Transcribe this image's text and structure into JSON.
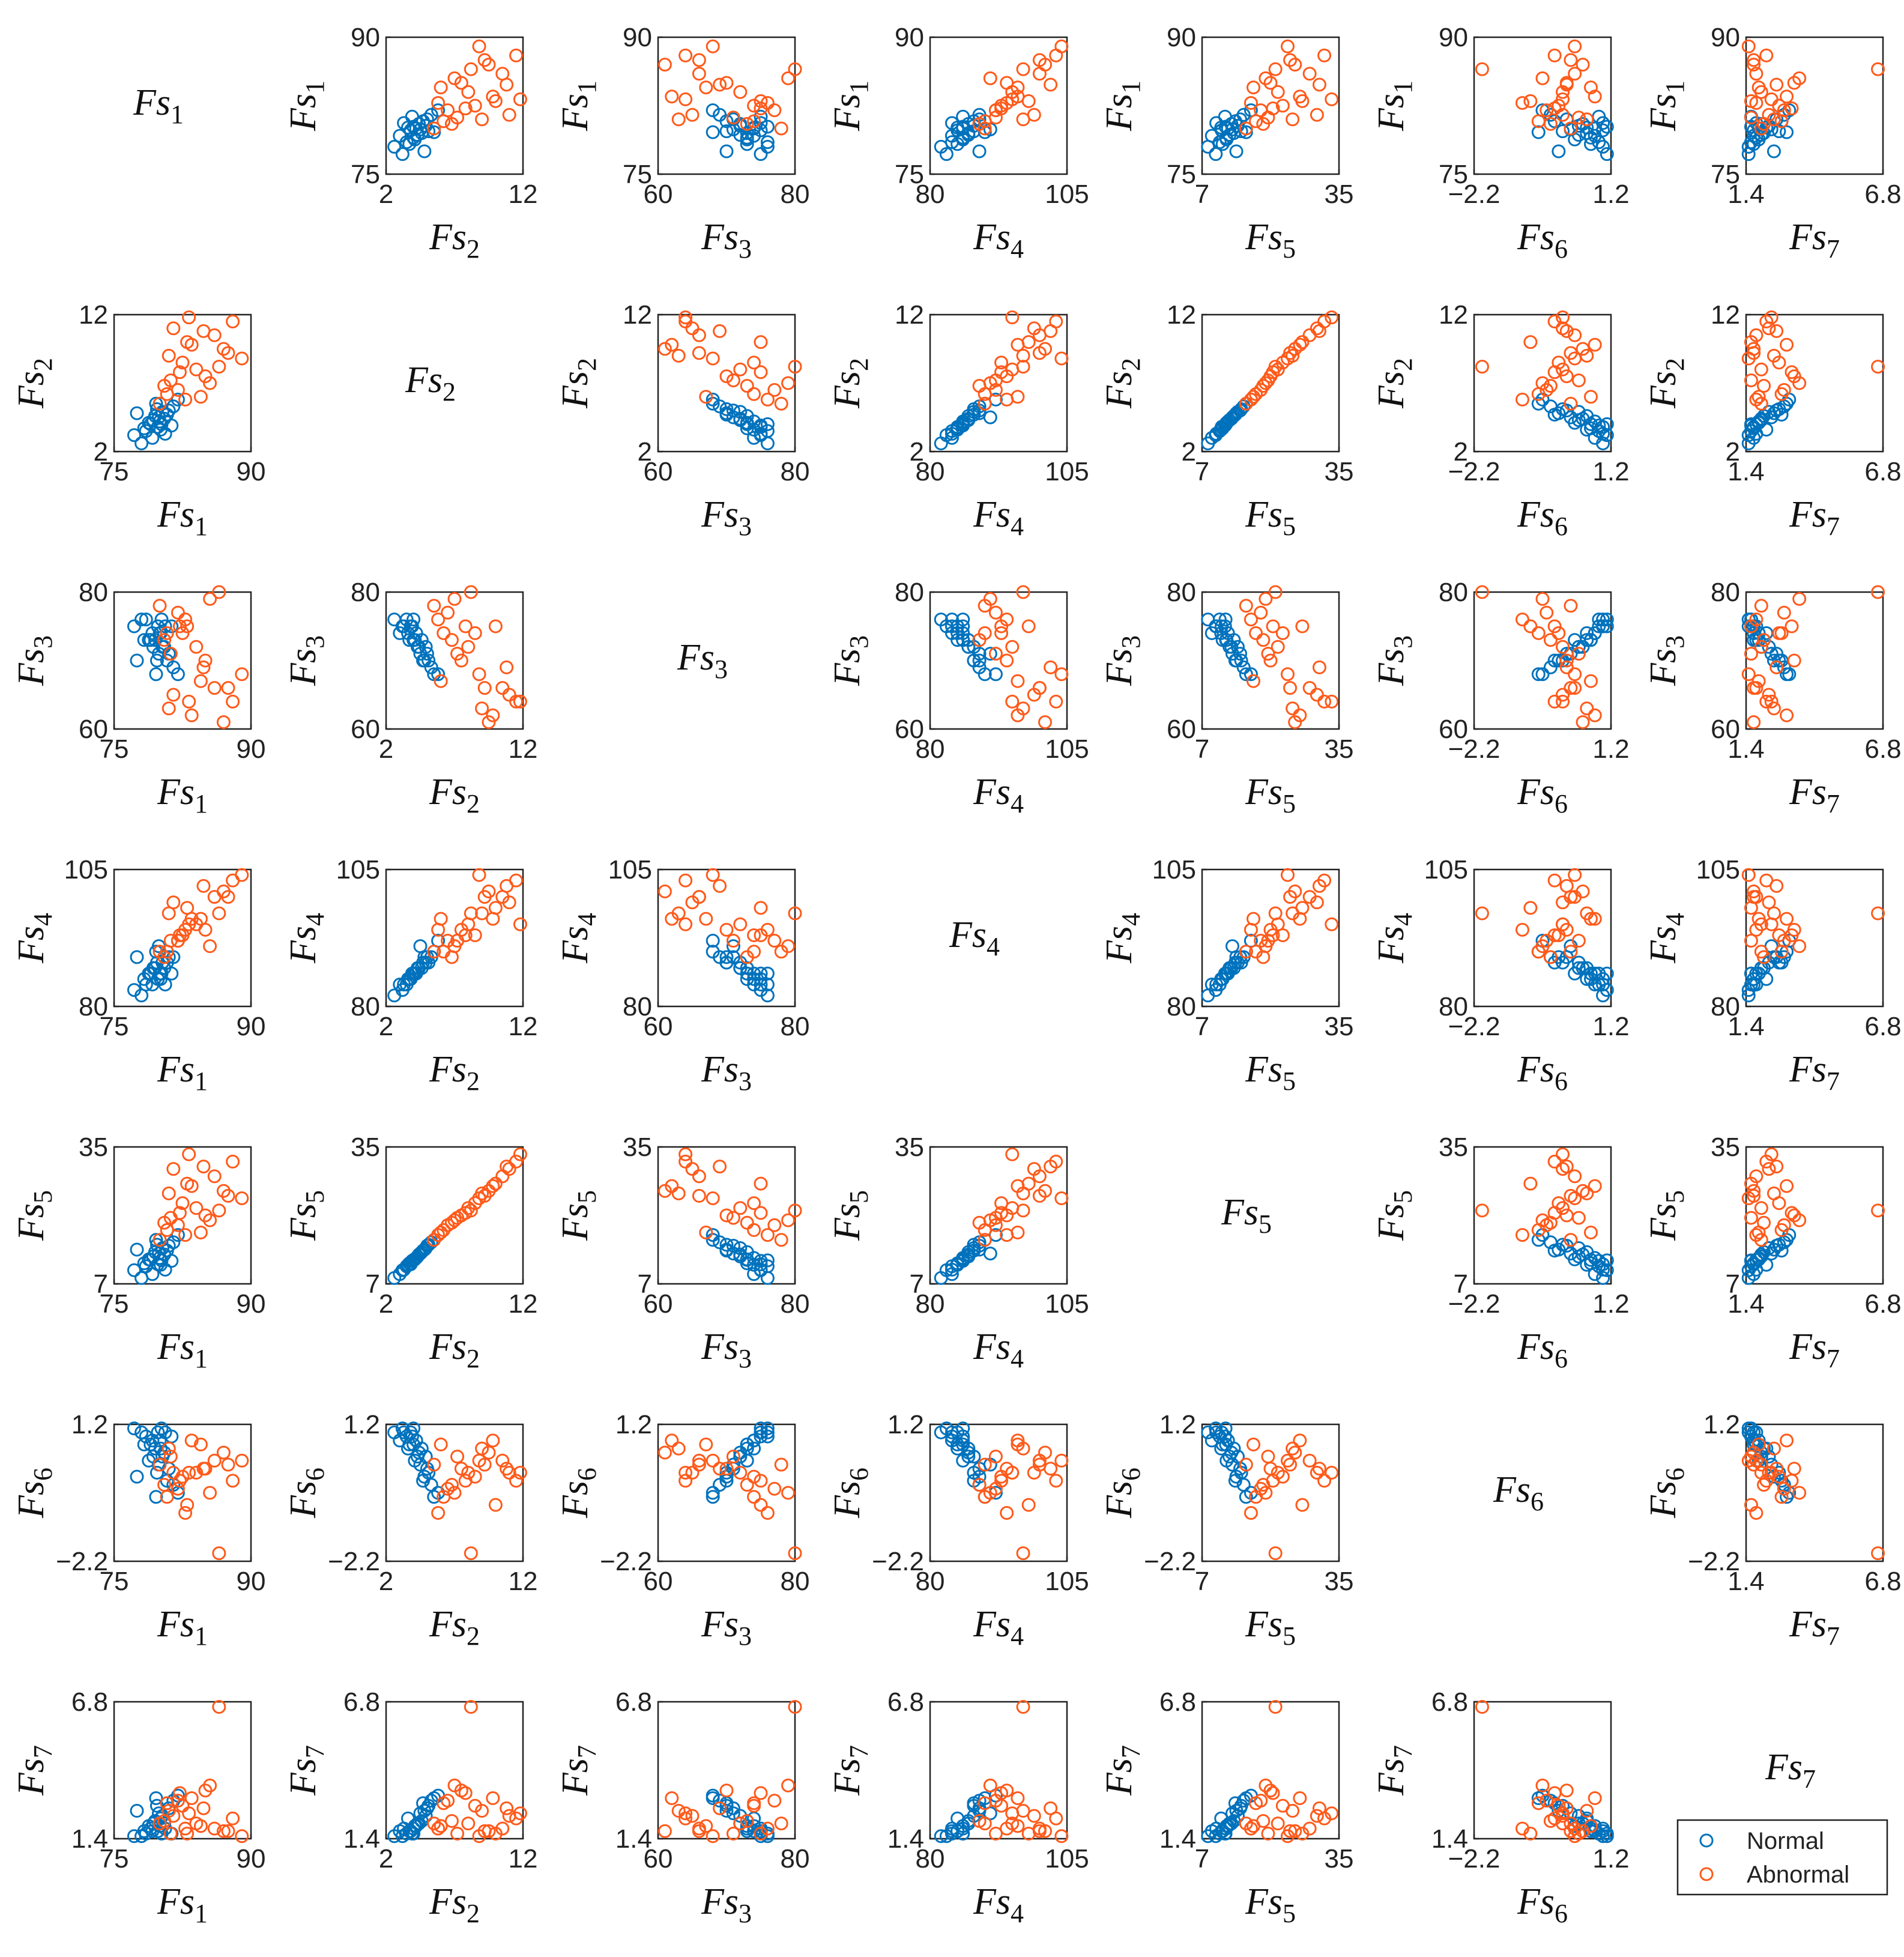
{
  "chart_data": {
    "type": "scatter-matrix",
    "variables": [
      {
        "symbol": "Fs",
        "sub": "1",
        "lim": [
          75,
          90
        ],
        "ticks": [
          75,
          90
        ]
      },
      {
        "symbol": "Fs",
        "sub": "2",
        "lim": [
          2,
          12
        ],
        "ticks": [
          2,
          12
        ]
      },
      {
        "symbol": "Fs",
        "sub": "3",
        "lim": [
          60,
          80
        ],
        "ticks": [
          60,
          80
        ]
      },
      {
        "symbol": "Fs",
        "sub": "4",
        "lim": [
          80,
          105
        ],
        "ticks": [
          80,
          105
        ]
      },
      {
        "symbol": "Fs",
        "sub": "5",
        "lim": [
          7,
          35
        ],
        "ticks": [
          7,
          35
        ]
      },
      {
        "symbol": "Fs",
        "sub": "6",
        "lim": [
          -2.2,
          1.2
        ],
        "ticks": [
          {
            "value": -2.2,
            "label": "−2.2"
          },
          1.2
        ]
      },
      {
        "symbol": "Fs",
        "sub": "7",
        "lim": [
          1.4,
          6.8
        ],
        "ticks": [
          1.4,
          6.8
        ]
      }
    ],
    "series": [
      {
        "name": "Normal",
        "color": "#0072bd",
        "points": [
          [
            79.5,
            4.6,
            73,
            87,
            13.5,
            0.6,
            2.1
          ],
          [
            80.0,
            4.2,
            74,
            86,
            12.3,
            0.8,
            1.9
          ],
          [
            79.8,
            3.8,
            75,
            85,
            11.0,
            1.0,
            1.7
          ],
          [
            80.3,
            4.9,
            72,
            88,
            14.3,
            0.4,
            2.3
          ],
          [
            78.5,
            3.5,
            76,
            84,
            10.6,
            0.9,
            1.6
          ],
          [
            81.0,
            5.0,
            71,
            89,
            14.8,
            0.1,
            2.6
          ],
          [
            79.0,
            4.0,
            73,
            86,
            11.9,
            0.7,
            1.8
          ],
          [
            80.5,
            4.4,
            72,
            87,
            13.0,
            0.5,
            2.0
          ],
          [
            77.2,
            3.2,
            75,
            83,
            9.8,
            1.1,
            1.5
          ],
          [
            79.2,
            3.0,
            74,
            84,
            9.0,
            0.8,
            1.7
          ],
          [
            80.8,
            4.7,
            70,
            88,
            13.8,
            -0.2,
            2.8
          ],
          [
            79.6,
            5.5,
            68,
            90,
            16.0,
            -0.6,
            3.0
          ],
          [
            81.5,
            5.3,
            69,
            89,
            15.5,
            -0.3,
            2.9
          ],
          [
            78.0,
            2.6,
            76,
            82,
            8.2,
            1.0,
            1.5
          ],
          [
            80.1,
            3.6,
            74,
            85,
            10.9,
            0.6,
            2.2
          ],
          [
            78.8,
            4.1,
            73,
            86,
            12.0,
            0.3,
            1.9
          ],
          [
            81.3,
            3.9,
            75,
            86,
            11.7,
            0.9,
            1.6
          ],
          [
            79.9,
            4.5,
            71,
            91,
            13.2,
            0.2,
            2.4
          ],
          [
            77.5,
            4.8,
            70,
            89,
            14.0,
            -0.1,
            2.5
          ],
          [
            80.6,
            3.3,
            75,
            84,
            9.9,
            1.0,
            1.8
          ],
          [
            79.3,
            4.3,
            72,
            87,
            12.6,
            0.4,
            2.0
          ],
          [
            82.0,
            5.8,
            68,
            92,
            17.0,
            -0.5,
            3.1
          ],
          [
            78.3,
            3.7,
            73,
            85,
            11.2,
            0.7,
            1.7
          ],
          [
            80.2,
            4.0,
            76,
            86,
            11.8,
            1.1,
            1.6
          ],
          [
            79.7,
            5.1,
            70,
            88,
            15.0,
            0.0,
            2.7
          ]
        ]
      },
      {
        "name": "Abnormal",
        "color": "#ff5a1a",
        "points": [
          [
            84.0,
            8.0,
            72,
            95,
            22.5,
            0.0,
            2.0
          ],
          [
            86.0,
            10.5,
            66,
            100,
            29.0,
            0.3,
            1.8
          ],
          [
            88.0,
            11.5,
            64,
            103,
            32.0,
            -0.2,
            2.2
          ],
          [
            82.0,
            6.5,
            77,
            92,
            19.0,
            -0.4,
            2.9
          ],
          [
            81.0,
            9.0,
            63,
            97,
            25.5,
            0.6,
            2.5
          ],
          [
            85.0,
            7.5,
            70,
            94,
            21.0,
            0.1,
            3.3
          ],
          [
            83.0,
            10.0,
            75,
            98,
            27.5,
            -0.8,
            1.6
          ],
          [
            80.0,
            5.5,
            78,
            90,
            16.0,
            0.2,
            2.0
          ],
          [
            87.0,
            9.5,
            61,
            101,
            26.0,
            0.5,
            1.7
          ],
          [
            82.5,
            8.5,
            74,
            93,
            23.5,
            -0.1,
            2.7
          ],
          [
            84.5,
            6.0,
            67,
            96,
            17.5,
            0.7,
            1.9
          ],
          [
            81.5,
            11.0,
            65,
            99,
            30.5,
            0.0,
            2.3
          ],
          [
            85.5,
            7.0,
            79,
            91,
            20.0,
            -0.5,
            3.5
          ],
          [
            89.0,
            8.8,
            68,
            104,
            24.5,
            0.3,
            1.5
          ],
          [
            80.5,
            6.8,
            73,
            89,
            19.5,
            -0.3,
            2.1
          ],
          [
            83.5,
            9.8,
            62,
            96,
            27.0,
            0.8,
            3.0
          ],
          [
            82.8,
            5.8,
            76,
            94,
            17.0,
            -1.0,
            1.8
          ],
          [
            84.8,
            10.8,
            69,
            102,
            31.0,
            0.1,
            2.6
          ],
          [
            81.2,
            7.2,
            71,
            92,
            20.5,
            0.4,
            1.6
          ],
          [
            86.5,
            8.2,
            80,
            97,
            22.0,
            -2.0,
            6.6
          ],
          [
            83.2,
            11.8,
            64,
            95,
            33.5,
            0.0,
            2.4
          ],
          [
            80.8,
            6.2,
            74,
            90,
            18.0,
            -0.6,
            2.8
          ],
          [
            87.5,
            9.2,
            66,
            100,
            25.0,
            0.2,
            1.7
          ],
          [
            82.2,
            7.8,
            75,
            93,
            21.5,
            -0.2,
            3.2
          ]
        ]
      }
    ],
    "legend": "lower-right"
  }
}
